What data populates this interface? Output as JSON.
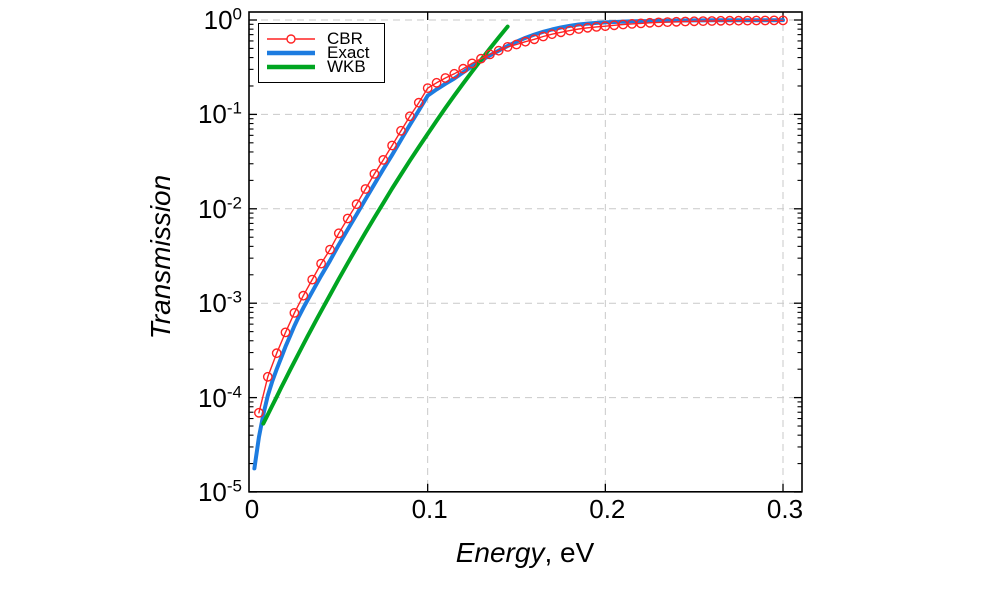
{
  "chart_data": {
    "type": "line",
    "title": "",
    "xlabel": "Energy, eV",
    "xlabel_name": "Energy",
    "xlabel_unit": ", eV",
    "ylabel": "Transmission",
    "y_scale": "log10",
    "y_tick_base": "10",
    "y_tick_exponents": [
      "0",
      "-1",
      "-2",
      "-3",
      "-4",
      "-5"
    ],
    "x_ticks": [
      0,
      0.1,
      0.2,
      0.3
    ],
    "x_tick_labels": [
      "0",
      "0.1",
      "0.2",
      "0.3"
    ],
    "xlim": [
      0,
      0.311
    ],
    "ylim_log10": [
      -5,
      0.085
    ],
    "grid": {
      "style": "dashed",
      "color": "#c9c9c9",
      "vertical_at": [
        0.1,
        0.2,
        0.3
      ],
      "horizontal_at_log10": [
        0,
        -1,
        -2,
        -3,
        -4
      ]
    },
    "legend": {
      "position": "top-left-inside",
      "border": "#000000",
      "labels": [
        "CBR",
        "Exact",
        "WKB"
      ]
    },
    "series": [
      {
        "name": "Exact",
        "color": "#1d7ce0",
        "line_width": 4,
        "marker": "none",
        "x": [
          0.0025,
          0.005,
          0.0075,
          0.01,
          0.0125,
          0.015,
          0.0175,
          0.02,
          0.0225,
          0.025,
          0.0275,
          0.03,
          0.035,
          0.04,
          0.045,
          0.05,
          0.055,
          0.06,
          0.065,
          0.07,
          0.075,
          0.08,
          0.085,
          0.09,
          0.095,
          0.1,
          0.105,
          0.11,
          0.115,
          0.12,
          0.125,
          0.13,
          0.135,
          0.14,
          0.145,
          0.15,
          0.155,
          0.16,
          0.165,
          0.17,
          0.175,
          0.18,
          0.185,
          0.19,
          0.195,
          0.2,
          0.205,
          0.21,
          0.215,
          0.22,
          0.225,
          0.23,
          0.235,
          0.24,
          0.245,
          0.25,
          0.255,
          0.26,
          0.265,
          0.27,
          0.275,
          0.28,
          0.285,
          0.29,
          0.295,
          0.3
        ],
        "T": [
          1.78e-05,
          3.8e-05,
          6.6e-05,
          0.000105,
          0.000148,
          0.0002,
          0.000263,
          0.000347,
          0.000447,
          0.000575,
          0.000724,
          0.000891,
          0.00132,
          0.00195,
          0.00282,
          0.00417,
          0.00603,
          0.00871,
          0.0126,
          0.0182,
          0.0263,
          0.0372,
          0.0537,
          0.0776,
          0.11,
          0.158,
          0.184,
          0.211,
          0.24,
          0.279,
          0.324,
          0.372,
          0.422,
          0.473,
          0.531,
          0.589,
          0.646,
          0.7,
          0.75,
          0.794,
          0.832,
          0.867,
          0.895,
          0.916,
          0.931,
          0.942,
          0.953,
          0.962,
          0.968,
          0.973,
          0.977,
          0.982,
          0.984,
          0.986,
          0.989,
          0.99,
          0.991,
          0.992,
          0.993,
          0.994,
          0.994,
          0.995,
          0.995,
          0.996,
          0.996,
          0.997
        ]
      },
      {
        "name": "WKB",
        "color": "#00a521",
        "line_width": 4,
        "marker": "none",
        "x": [
          0.0075,
          0.01,
          0.0125,
          0.015,
          0.0175,
          0.02,
          0.0225,
          0.025,
          0.0275,
          0.03,
          0.0325,
          0.035,
          0.0375,
          0.04,
          0.045,
          0.05,
          0.055,
          0.06,
          0.065,
          0.07,
          0.075,
          0.08,
          0.085,
          0.09,
          0.095,
          0.1,
          0.105,
          0.11,
          0.115,
          0.12,
          0.125,
          0.13,
          0.135,
          0.14,
          0.145
        ],
        "T": [
          5.3e-05,
          6.6e-05,
          8.2e-05,
          0.000102,
          0.000127,
          0.000157,
          0.000195,
          0.00024,
          0.000297,
          0.000365,
          0.000448,
          0.00055,
          0.000673,
          0.000822,
          0.00122,
          0.00181,
          0.00265,
          0.00387,
          0.00561,
          0.00807,
          0.0115,
          0.0164,
          0.0231,
          0.0324,
          0.045,
          0.0622,
          0.0855,
          0.117,
          0.158,
          0.213,
          0.284,
          0.378,
          0.499,
          0.653,
          0.851
        ]
      },
      {
        "name": "CBR",
        "color": "#ff2222",
        "line_width": 1.4,
        "marker": "open-circle",
        "marker_size": 4.2,
        "x": [
          0.005,
          0.01,
          0.015,
          0.02,
          0.025,
          0.03,
          0.035,
          0.04,
          0.045,
          0.05,
          0.055,
          0.06,
          0.065,
          0.07,
          0.075,
          0.08,
          0.085,
          0.09,
          0.095,
          0.1,
          0.105,
          0.11,
          0.115,
          0.12,
          0.125,
          0.13,
          0.135,
          0.14,
          0.145,
          0.15,
          0.155,
          0.16,
          0.165,
          0.17,
          0.175,
          0.18,
          0.185,
          0.19,
          0.195,
          0.2,
          0.205,
          0.21,
          0.215,
          0.22,
          0.225,
          0.23,
          0.235,
          0.24,
          0.245,
          0.25,
          0.255,
          0.26,
          0.265,
          0.27,
          0.275,
          0.28,
          0.285,
          0.29,
          0.295,
          0.3
        ],
        "T": [
          6.9e-05,
          0.000166,
          0.000295,
          0.00049,
          0.00079,
          0.0012,
          0.00178,
          0.00263,
          0.0037,
          0.0055,
          0.0079,
          0.0112,
          0.0162,
          0.0234,
          0.033,
          0.0468,
          0.067,
          0.0955,
          0.133,
          0.19,
          0.216,
          0.243,
          0.269,
          0.305,
          0.347,
          0.389,
          0.432,
          0.473,
          0.519,
          0.55,
          0.589,
          0.624,
          0.668,
          0.708,
          0.741,
          0.773,
          0.802,
          0.826,
          0.845,
          0.859,
          0.879,
          0.897,
          0.91,
          0.92,
          0.933,
          0.942,
          0.951,
          0.957,
          0.964,
          0.969,
          0.973,
          0.976,
          0.98,
          0.982,
          0.984,
          0.986,
          0.987,
          0.989,
          0.99,
          0.991
        ]
      }
    ],
    "legend_order": [
      "CBR",
      "Exact",
      "WKB"
    ]
  }
}
